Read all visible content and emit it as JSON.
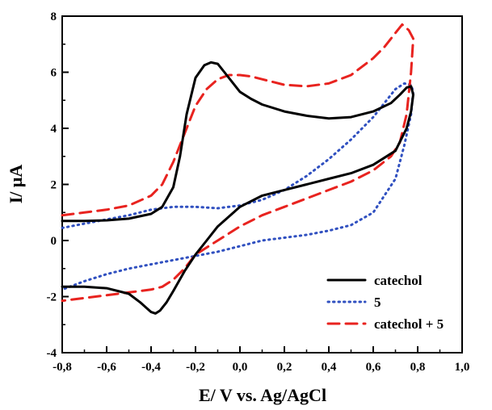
{
  "chart_data": {
    "type": "line",
    "xlabel": "E/ V vs. Ag/AgCl",
    "ylabel": "I/ μA",
    "xlim": [
      -0.8,
      1.0
    ],
    "ylim": [
      -4,
      8
    ],
    "xticks": [
      -0.8,
      -0.6,
      -0.4,
      -0.2,
      0.0,
      0.2,
      0.4,
      0.6,
      0.8,
      1.0
    ],
    "xtick_labels": [
      "-0,8",
      "-0,6",
      "-0,4",
      "-0,2",
      "0,0",
      "0,2",
      "0,4",
      "0,6",
      "0,8",
      "1,0"
    ],
    "yticks": [
      -4,
      -2,
      0,
      2,
      4,
      6,
      8
    ],
    "ytick_labels": [
      "-4",
      "-2",
      "0",
      "2",
      "4",
      "6",
      "8"
    ],
    "grid": false,
    "legend_position": "bottom-right",
    "series": [
      {
        "name": "catechol",
        "color": "#000000",
        "style": "solid",
        "x": [
          -0.8,
          -0.7,
          -0.6,
          -0.5,
          -0.4,
          -0.35,
          -0.3,
          -0.27,
          -0.24,
          -0.2,
          -0.16,
          -0.13,
          -0.1,
          -0.07,
          -0.03,
          0.0,
          0.05,
          0.1,
          0.2,
          0.3,
          0.4,
          0.5,
          0.6,
          0.68,
          0.72,
          0.75,
          0.77,
          0.78,
          0.77,
          0.75,
          0.7,
          0.6,
          0.5,
          0.4,
          0.3,
          0.2,
          0.1,
          0.0,
          -0.1,
          -0.15,
          -0.2,
          -0.25,
          -0.3,
          -0.33,
          -0.36,
          -0.38,
          -0.4,
          -0.45,
          -0.5,
          -0.6,
          -0.7,
          -0.8
        ],
        "y": [
          0.7,
          0.7,
          0.72,
          0.78,
          0.95,
          1.2,
          1.9,
          3.0,
          4.5,
          5.8,
          6.25,
          6.35,
          6.3,
          6.0,
          5.6,
          5.3,
          5.05,
          4.85,
          4.6,
          4.45,
          4.35,
          4.4,
          4.6,
          4.9,
          5.2,
          5.45,
          5.5,
          5.2,
          4.6,
          4.0,
          3.2,
          2.7,
          2.4,
          2.2,
          2.0,
          1.8,
          1.6,
          1.2,
          0.5,
          0.0,
          -0.5,
          -1.1,
          -1.8,
          -2.2,
          -2.5,
          -2.6,
          -2.55,
          -2.2,
          -1.9,
          -1.7,
          -1.65,
          -1.65
        ]
      },
      {
        "name": "5",
        "color": "#3050c0",
        "style": "dotted",
        "x": [
          -0.8,
          -0.7,
          -0.6,
          -0.5,
          -0.4,
          -0.3,
          -0.2,
          -0.1,
          0.0,
          0.1,
          0.2,
          0.3,
          0.4,
          0.5,
          0.6,
          0.65,
          0.7,
          0.74,
          0.77,
          0.78,
          0.77,
          0.74,
          0.7,
          0.6,
          0.5,
          0.4,
          0.3,
          0.2,
          0.1,
          0.0,
          -0.1,
          -0.2,
          -0.3,
          -0.4,
          -0.5,
          -0.6,
          -0.7,
          -0.8
        ],
        "y": [
          0.45,
          0.6,
          0.75,
          0.9,
          1.1,
          1.2,
          1.2,
          1.15,
          1.25,
          1.45,
          1.8,
          2.3,
          2.9,
          3.6,
          4.4,
          4.9,
          5.4,
          5.6,
          5.55,
          5.3,
          4.5,
          3.4,
          2.2,
          1.0,
          0.55,
          0.35,
          0.2,
          0.1,
          0.0,
          -0.2,
          -0.4,
          -0.55,
          -0.7,
          -0.85,
          -1.0,
          -1.2,
          -1.45,
          -1.75
        ]
      },
      {
        "name": "catechol + 5",
        "color": "#e8231f",
        "style": "dashed",
        "x": [
          -0.8,
          -0.7,
          -0.6,
          -0.5,
          -0.4,
          -0.35,
          -0.3,
          -0.25,
          -0.2,
          -0.15,
          -0.1,
          -0.05,
          0.0,
          0.05,
          0.1,
          0.2,
          0.3,
          0.4,
          0.5,
          0.6,
          0.65,
          0.7,
          0.73,
          0.76,
          0.78,
          0.77,
          0.75,
          0.72,
          0.68,
          0.6,
          0.5,
          0.4,
          0.3,
          0.2,
          0.1,
          0.0,
          -0.1,
          -0.2,
          -0.25,
          -0.3,
          -0.35,
          -0.4,
          -0.5,
          -0.6,
          -0.7,
          -0.8
        ],
        "y": [
          0.9,
          1.0,
          1.1,
          1.25,
          1.6,
          2.0,
          2.8,
          3.8,
          4.8,
          5.4,
          5.75,
          5.9,
          5.9,
          5.85,
          5.75,
          5.55,
          5.5,
          5.6,
          5.9,
          6.5,
          6.9,
          7.4,
          7.7,
          7.5,
          7.2,
          6.0,
          4.5,
          3.5,
          3.0,
          2.5,
          2.1,
          1.8,
          1.5,
          1.2,
          0.9,
          0.5,
          0.0,
          -0.5,
          -1.0,
          -1.4,
          -1.65,
          -1.75,
          -1.85,
          -1.95,
          -2.05,
          -2.15
        ]
      }
    ]
  }
}
